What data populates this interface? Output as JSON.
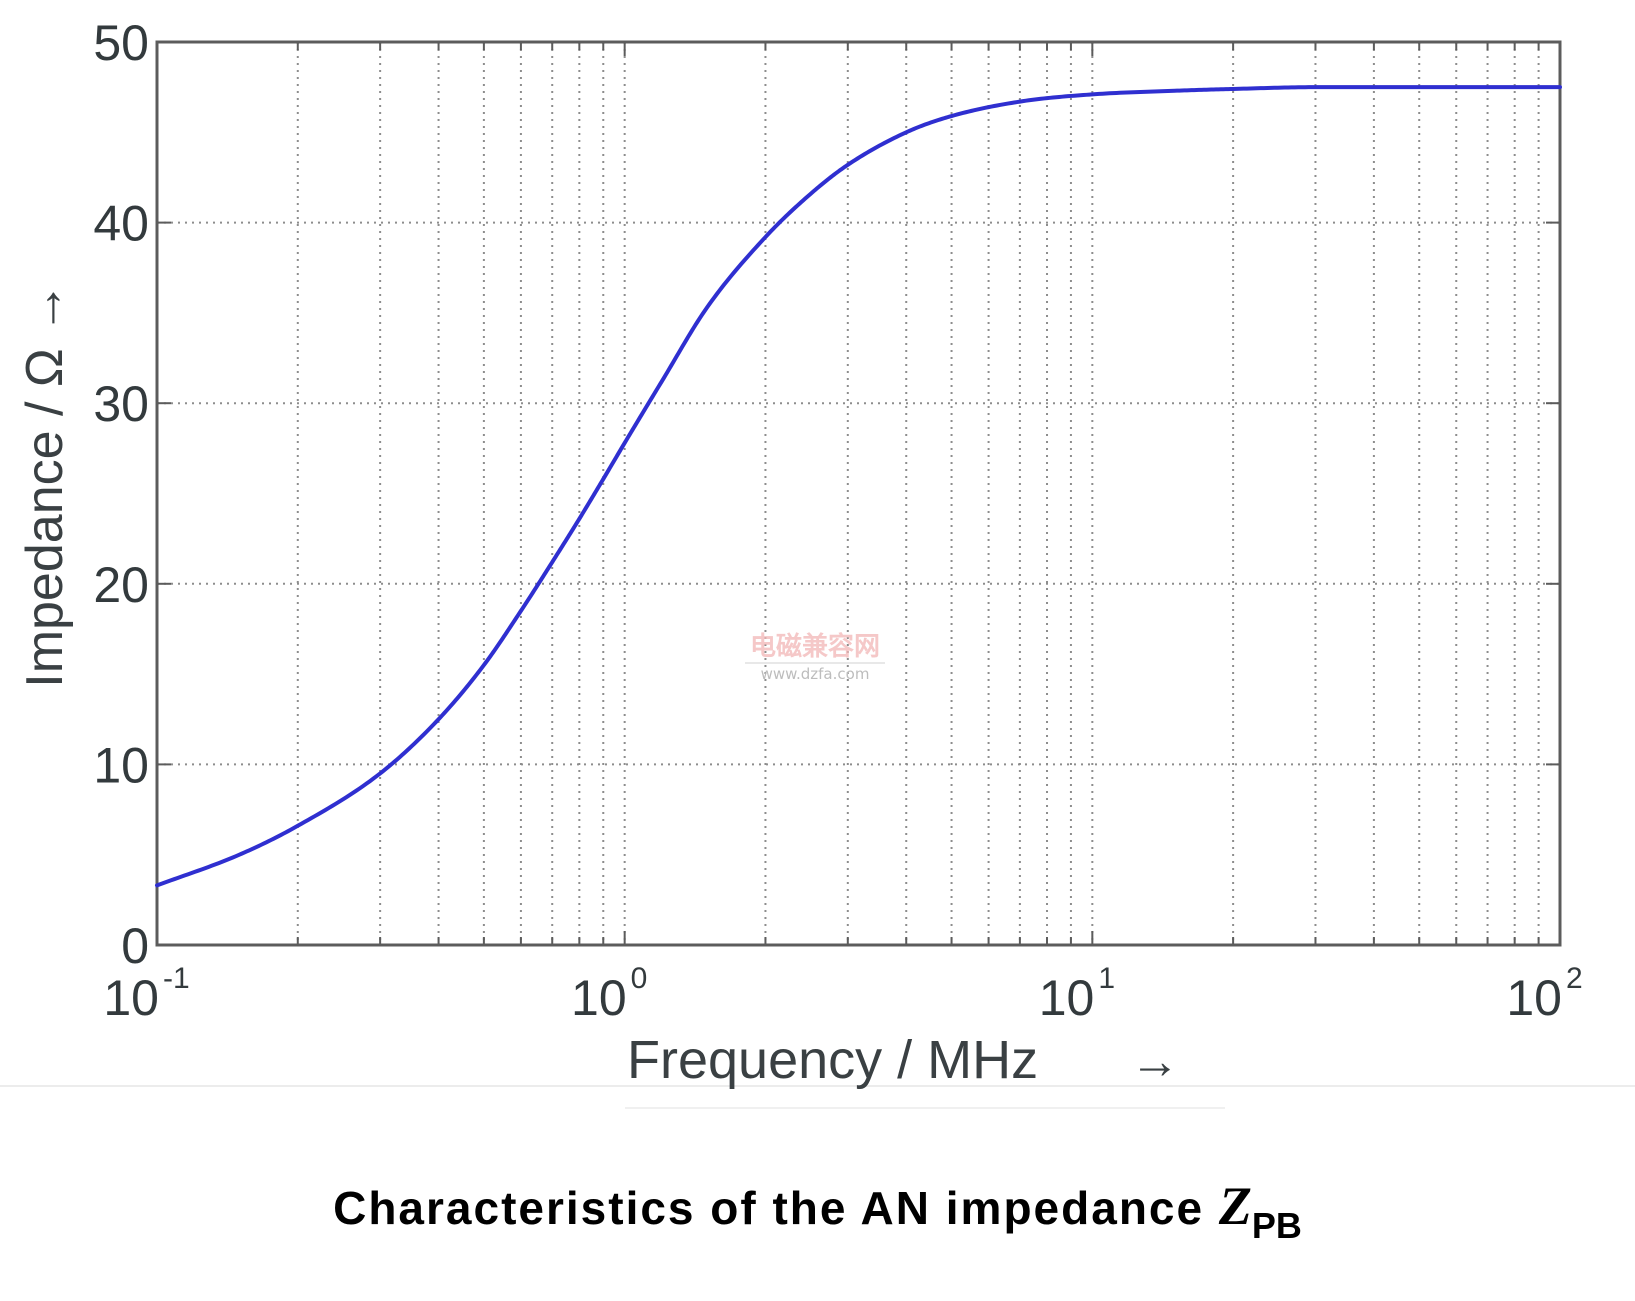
{
  "chart_data": {
    "type": "line",
    "xscale": "log",
    "xlim": [
      0.1,
      100
    ],
    "ylim": [
      0,
      50
    ],
    "xlabel": "Frequency / MHz",
    "xlabel_arrow": "→",
    "ylabel": "Impedance / Ω",
    "ylabel_arrow": "→",
    "grid": true,
    "x_ticks": [
      {
        "value": 0.1,
        "base": "10",
        "exp": "-1"
      },
      {
        "value": 1,
        "base": "10",
        "exp": "0"
      },
      {
        "value": 10,
        "base": "10",
        "exp": "1"
      },
      {
        "value": 100,
        "base": "10",
        "exp": "2"
      }
    ],
    "y_ticks": [
      0,
      10,
      20,
      30,
      40,
      50
    ],
    "series": [
      {
        "color": "#2f2fd0",
        "x": [
          0.1,
          0.15,
          0.2,
          0.3,
          0.4,
          0.5,
          0.6,
          0.7,
          0.8,
          0.9,
          1.0,
          1.2,
          1.5,
          2.0,
          2.5,
          3.0,
          4.0,
          5.0,
          7.0,
          10,
          15,
          20,
          30,
          50,
          100
        ],
        "y": [
          3.3,
          5.0,
          6.6,
          9.5,
          12.5,
          15.5,
          18.5,
          21.2,
          23.6,
          25.8,
          27.8,
          31.2,
          35.3,
          39.2,
          41.6,
          43.2,
          45.0,
          45.9,
          46.7,
          47.1,
          47.3,
          47.4,
          47.5,
          47.5,
          47.5
        ]
      }
    ]
  },
  "watermark": {
    "line1": "电磁兼容网",
    "line2": "www.dzfa.com"
  },
  "caption": {
    "text": "Characteristics of the AN impedance ",
    "symbol": "Z",
    "subscript": "PB"
  }
}
